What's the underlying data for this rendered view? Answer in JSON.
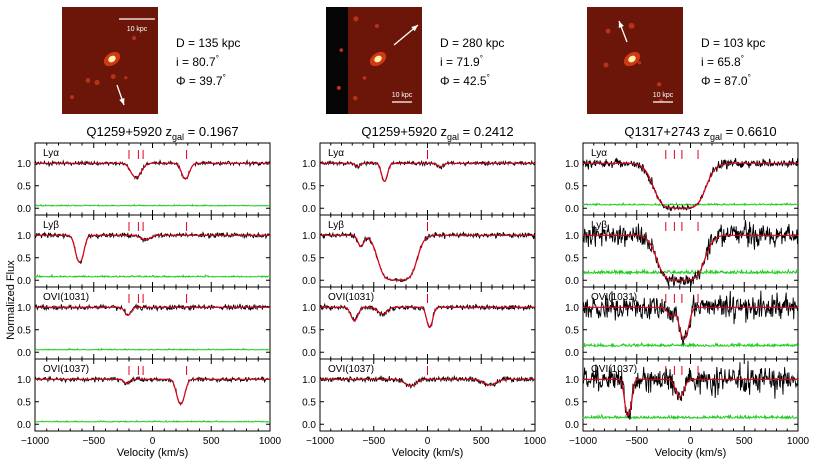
{
  "figure": {
    "ylabel": "Normalized Flux",
    "xlabel": "Velocity (km/s)",
    "xlim": [
      -1000,
      1000
    ],
    "xticks": [
      -1000,
      -500,
      0,
      500,
      1000
    ],
    "ylim": [
      -0.15,
      1.45
    ],
    "yticks": [
      0.0,
      0.5,
      1.0
    ]
  },
  "chart_data": [
    {
      "type": "line",
      "title": "Q1259+5920",
      "z_gal_label": "z",
      "z_gal_sub": "gal",
      "z_gal_value": "= 0.1967",
      "galaxy": {
        "D": "D = 135 kpc",
        "i": "i = 80.7",
        "phi": "Φ = 39.7",
        "scale": "10 kpc",
        "scale_pos": "top"
      },
      "component_velocities": [
        -200,
        -120,
        -80,
        290
      ],
      "panels": [
        {
          "label": "Lyα",
          "lines": [
            {
              "v": -140,
              "depth": 0.32,
              "width": 40
            },
            {
              "v": 280,
              "depth": 0.35,
              "width": 30
            }
          ],
          "noise": 0.03,
          "err": 0.05
        },
        {
          "label": "Lyβ",
          "lines": [
            {
              "v": -620,
              "depth": 0.6,
              "width": 30
            },
            {
              "v": -60,
              "depth": 0.1,
              "width": 40
            }
          ],
          "noise": 0.04,
          "err": 0.07
        },
        {
          "label": "OVI(1031)",
          "lines": [
            {
              "v": -210,
              "depth": 0.18,
              "width": 25
            }
          ],
          "noise": 0.04,
          "err": 0.05
        },
        {
          "label": "OVI(1037)",
          "lines": [
            {
              "v": 240,
              "depth": 0.55,
              "width": 30
            },
            {
              "v": -220,
              "depth": 0.1,
              "width": 20
            }
          ],
          "noise": 0.035,
          "err": 0.05
        }
      ]
    },
    {
      "type": "line",
      "title": "Q1259+5920",
      "z_gal_label": "z",
      "z_gal_sub": "gal",
      "z_gal_value": "= 0.2412",
      "galaxy": {
        "D": "D = 280 kpc",
        "i": "i = 71.9",
        "phi": "Φ = 42.5",
        "scale": "10 kpc",
        "scale_pos": "bottom"
      },
      "component_velocities": [
        0
      ],
      "panels": [
        {
          "label": "Lyα",
          "lines": [
            {
              "v": -400,
              "depth": 0.4,
              "width": 25
            },
            {
              "v": -650,
              "depth": 0.08,
              "width": 20
            },
            {
              "v": 120,
              "depth": 0.08,
              "width": 25
            }
          ],
          "noise": 0.03,
          "err": 0
        },
        {
          "label": "Lyβ",
          "lines": [
            {
              "v": -280,
              "depth": 1.0,
              "width": 90,
              "sat": true
            },
            {
              "v": -620,
              "depth": 0.25,
              "width": 25
            }
          ],
          "noise": 0.04,
          "err": 0
        },
        {
          "label": "OVI(1031)",
          "lines": [
            {
              "v": -680,
              "depth": 0.3,
              "width": 30
            },
            {
              "v": 20,
              "depth": 0.45,
              "width": 25
            },
            {
              "v": -420,
              "depth": 0.15,
              "width": 40
            }
          ],
          "noise": 0.04,
          "err": 0
        },
        {
          "label": "OVI(1037)",
          "lines": [
            {
              "v": -160,
              "depth": 0.15,
              "width": 50
            },
            {
              "v": 580,
              "depth": 0.12,
              "width": 60
            }
          ],
          "noise": 0.04,
          "err": 0
        }
      ]
    },
    {
      "type": "line",
      "title": "Q1317+2743",
      "z_gal_label": "z",
      "z_gal_sub": "gal",
      "z_gal_value": "= 0.6610",
      "galaxy": {
        "D": "D = 103 kpc",
        "i": "i = 65.8",
        "phi": "Φ = 87.0",
        "scale": "10 kpc",
        "scale_pos": "bottom"
      },
      "component_velocities": [
        -230,
        -150,
        -80,
        70
      ],
      "panels": [
        {
          "label": "Lyα",
          "lines": [
            {
              "v": -100,
              "depth": 1.0,
              "width": 120,
              "sat": true
            }
          ],
          "noise": 0.07,
          "err": 0.07
        },
        {
          "label": "Lyβ",
          "lines": [
            {
              "v": -90,
              "depth": 1.0,
              "width": 110,
              "sat": true
            }
          ],
          "noise": 0.18,
          "err": 0.15
        },
        {
          "label": "OVI(1031)",
          "lines": [
            {
              "v": -60,
              "depth": 0.7,
              "width": 35
            },
            {
              "v": -180,
              "depth": 0.2,
              "width": 30
            }
          ],
          "noise": 0.2,
          "err": 0.13
        },
        {
          "label": "OVI(1037)",
          "lines": [
            {
              "v": -580,
              "depth": 0.8,
              "width": 25
            },
            {
              "v": -100,
              "depth": 0.4,
              "width": 35
            }
          ],
          "noise": 0.2,
          "err": 0.13
        }
      ]
    }
  ]
}
